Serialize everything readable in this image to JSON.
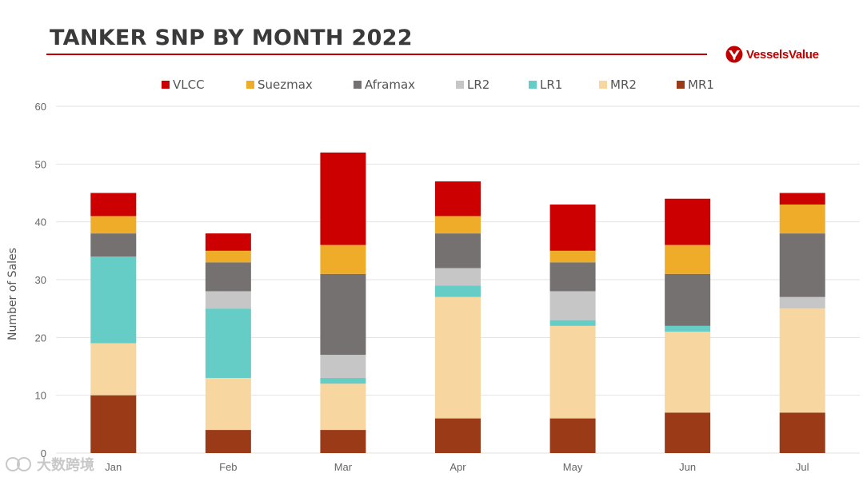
{
  "header": {
    "title": "TANKER SNP BY MONTH 2022",
    "logo_text": "VesselsValue"
  },
  "watermark": {
    "text": "大数跨境"
  },
  "chart_data": {
    "type": "bar",
    "stacked": true,
    "title": "TANKER SNP BY MONTH 2022",
    "xlabel": "",
    "ylabel": "Number of Sales",
    "ylim": [
      0,
      60
    ],
    "yticks": [
      0,
      10,
      20,
      30,
      40,
      50,
      60
    ],
    "grid": true,
    "legend_position": "top",
    "categories": [
      "Jan",
      "Feb",
      "Mar",
      "Apr",
      "May",
      "Jun",
      "Jul"
    ],
    "series": [
      {
        "name": "MR1",
        "color": "#9a3a17",
        "values": [
          10,
          4,
          4,
          6,
          6,
          7,
          7
        ]
      },
      {
        "name": "MR2",
        "color": "#f8d6a0",
        "values": [
          9,
          9,
          8,
          21,
          16,
          14,
          18
        ]
      },
      {
        "name": "LR1",
        "color": "#66ccc6",
        "values": [
          15,
          12,
          1,
          2,
          1,
          1,
          0
        ]
      },
      {
        "name": "LR2",
        "color": "#c6c6c6",
        "values": [
          0,
          3,
          4,
          3,
          5,
          0,
          2
        ]
      },
      {
        "name": "Aframax",
        "color": "#757171",
        "values": [
          4,
          5,
          14,
          6,
          5,
          9,
          11
        ]
      },
      {
        "name": "Suezmax",
        "color": "#efac28",
        "values": [
          3,
          2,
          5,
          3,
          2,
          5,
          5
        ]
      },
      {
        "name": "VLCC",
        "color": "#cc0000",
        "values": [
          4,
          3,
          16,
          6,
          8,
          8,
          2
        ]
      }
    ],
    "legend_order": [
      "VLCC",
      "Suezmax",
      "Aframax",
      "LR2",
      "LR1",
      "MR2",
      "MR1"
    ]
  }
}
